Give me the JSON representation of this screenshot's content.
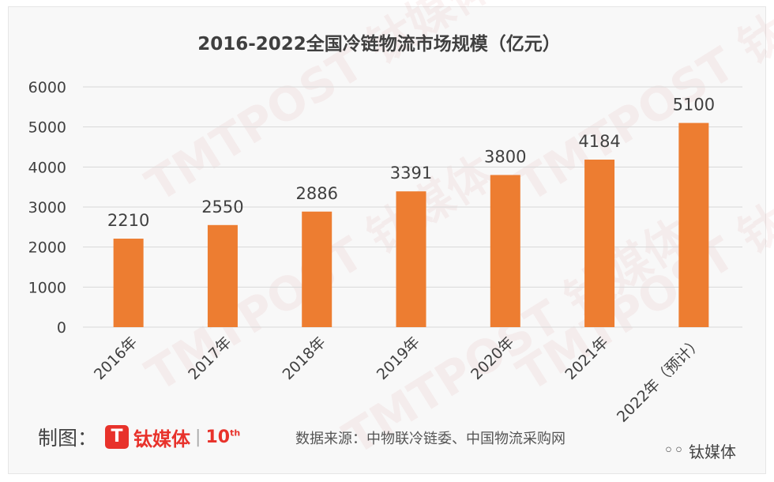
{
  "chart_data": {
    "type": "bar",
    "title": "2016-2022全国冷链物流市场规模（亿元）",
    "categories": [
      "2016年",
      "2017年",
      "2018年",
      "2019年",
      "2020年",
      "2021年",
      "2022年（预计）"
    ],
    "values": [
      2210,
      2550,
      2886,
      3391,
      3800,
      4184,
      5100
    ],
    "data_labels": [
      "2210",
      "2550",
      "2886",
      "3391",
      "3800",
      "4184",
      "5100"
    ],
    "y_ticks": [
      "0",
      "1000",
      "2000",
      "3000",
      "4000",
      "5000",
      "6000"
    ],
    "ylim": [
      0,
      6000
    ],
    "grid": true,
    "bar_color": "#ed7d31"
  },
  "footer": {
    "made_by_label": "制图：",
    "logo_glyph": "T",
    "logo_name": "钛媒体",
    "logo_sep": "|",
    "logo_anniv_num": "10",
    "logo_anniv_sup": "th",
    "source": "数据来源：中物联冷链委、中国物流采购网"
  },
  "wechat": {
    "icon": "wechat-icon",
    "name": "钛媒体"
  },
  "watermark_text": "TMTPOST 钛媒体"
}
